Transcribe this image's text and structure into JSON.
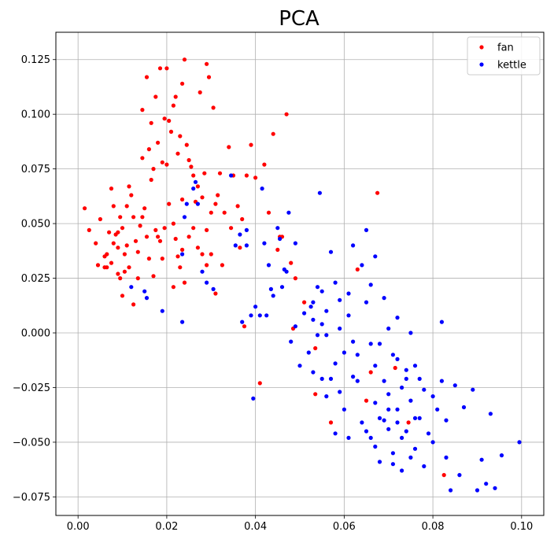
{
  "chart_data": {
    "type": "scatter",
    "title": "PCA",
    "xlabel": "",
    "ylabel": "",
    "xlim": [
      -0.005,
      0.105
    ],
    "ylim": [
      -0.0835,
      0.1375
    ],
    "xticks": [
      0.0,
      0.02,
      0.04,
      0.06,
      0.08,
      0.1
    ],
    "xtick_labels": [
      "0.00",
      "0.02",
      "0.04",
      "0.06",
      "0.08",
      "0.10"
    ],
    "yticks": [
      -0.075,
      -0.05,
      -0.025,
      0.0,
      0.025,
      0.05,
      0.075,
      0.1,
      0.125
    ],
    "ytick_labels": [
      "−0.075",
      "−0.050",
      "−0.025",
      "0.000",
      "0.025",
      "0.050",
      "0.075",
      "0.100",
      "0.125"
    ],
    "grid": true,
    "legend_position": "top-right",
    "series": [
      {
        "name": "fan",
        "color": "#ff0000",
        "points": [
          [
            0.0015,
            0.057
          ],
          [
            0.0025,
            0.047
          ],
          [
            0.004,
            0.041
          ],
          [
            0.005,
            0.052
          ],
          [
            0.0045,
            0.031
          ],
          [
            0.006,
            0.035
          ],
          [
            0.0065,
            0.03
          ],
          [
            0.0075,
            0.032
          ],
          [
            0.007,
            0.046
          ],
          [
            0.008,
            0.041
          ],
          [
            0.0085,
            0.045
          ],
          [
            0.009,
            0.039
          ],
          [
            0.0095,
            0.053
          ],
          [
            0.01,
            0.048
          ],
          [
            0.0105,
            0.036
          ],
          [
            0.011,
            0.058
          ],
          [
            0.0115,
            0.067
          ],
          [
            0.012,
            0.063
          ],
          [
            0.0125,
            0.053
          ],
          [
            0.013,
            0.042
          ],
          [
            0.0135,
            0.037
          ],
          [
            0.0075,
            0.066
          ],
          [
            0.008,
            0.058
          ],
          [
            0.009,
            0.027
          ],
          [
            0.01,
            0.017
          ],
          [
            0.0115,
            0.03
          ],
          [
            0.0125,
            0.013
          ],
          [
            0.0135,
            0.025
          ],
          [
            0.014,
            0.049
          ],
          [
            0.0145,
            0.053
          ],
          [
            0.015,
            0.057
          ],
          [
            0.0155,
            0.044
          ],
          [
            0.016,
            0.034
          ],
          [
            0.0145,
            0.102
          ],
          [
            0.0155,
            0.117
          ],
          [
            0.016,
            0.084
          ],
          [
            0.0165,
            0.096
          ],
          [
            0.017,
            0.075
          ],
          [
            0.0175,
            0.108
          ],
          [
            0.018,
            0.087
          ],
          [
            0.0185,
            0.121
          ],
          [
            0.019,
            0.078
          ],
          [
            0.0195,
            0.098
          ],
          [
            0.02,
            0.121
          ],
          [
            0.0205,
            0.097
          ],
          [
            0.021,
            0.092
          ],
          [
            0.0215,
            0.104
          ],
          [
            0.022,
            0.108
          ],
          [
            0.0225,
            0.082
          ],
          [
            0.023,
            0.09
          ],
          [
            0.0235,
            0.114
          ],
          [
            0.024,
            0.125
          ],
          [
            0.0245,
            0.086
          ],
          [
            0.025,
            0.079
          ],
          [
            0.0255,
            0.076
          ],
          [
            0.026,
            0.072
          ],
          [
            0.0265,
            0.06
          ],
          [
            0.027,
            0.067
          ],
          [
            0.0275,
            0.11
          ],
          [
            0.028,
            0.062
          ],
          [
            0.0285,
            0.073
          ],
          [
            0.029,
            0.123
          ],
          [
            0.0295,
            0.117
          ],
          [
            0.03,
            0.055
          ],
          [
            0.0305,
            0.103
          ],
          [
            0.031,
            0.059
          ],
          [
            0.0315,
            0.063
          ],
          [
            0.032,
            0.073
          ],
          [
            0.033,
            0.055
          ],
          [
            0.034,
            0.085
          ],
          [
            0.035,
            0.072
          ],
          [
            0.036,
            0.058
          ],
          [
            0.037,
            0.052
          ],
          [
            0.038,
            0.072
          ],
          [
            0.039,
            0.086
          ],
          [
            0.04,
            0.071
          ],
          [
            0.042,
            0.077
          ],
          [
            0.043,
            0.055
          ],
          [
            0.044,
            0.091
          ],
          [
            0.047,
            0.1
          ],
          [
            0.0205,
            0.059
          ],
          [
            0.0215,
            0.05
          ],
          [
            0.022,
            0.043
          ],
          [
            0.0225,
            0.035
          ],
          [
            0.023,
            0.03
          ],
          [
            0.0235,
            0.038
          ],
          [
            0.024,
            0.023
          ],
          [
            0.025,
            0.044
          ],
          [
            0.026,
            0.048
          ],
          [
            0.027,
            0.039
          ],
          [
            0.028,
            0.036
          ],
          [
            0.029,
            0.031
          ],
          [
            0.03,
            0.036
          ],
          [
            0.031,
            0.018
          ],
          [
            0.0325,
            0.031
          ],
          [
            0.017,
            0.026
          ],
          [
            0.018,
            0.044
          ],
          [
            0.0185,
            0.042
          ],
          [
            0.019,
            0.034
          ],
          [
            0.0195,
            0.048
          ],
          [
            0.02,
            0.077
          ],
          [
            0.0215,
            0.021
          ],
          [
            0.0345,
            0.048
          ],
          [
            0.0365,
            0.039
          ],
          [
            0.0375,
            0.003
          ],
          [
            0.041,
            -0.023
          ],
          [
            0.045,
            0.038
          ],
          [
            0.0455,
            0.044
          ],
          [
            0.046,
            0.044
          ],
          [
            0.048,
            0.032
          ],
          [
            0.049,
            0.025
          ],
          [
            0.0485,
            0.002
          ],
          [
            0.051,
            0.014
          ],
          [
            0.0535,
            -0.007
          ],
          [
            0.0535,
            -0.028
          ],
          [
            0.057,
            -0.041
          ],
          [
            0.063,
            0.029
          ],
          [
            0.065,
            -0.031
          ],
          [
            0.066,
            -0.018
          ],
          [
            0.0675,
            0.064
          ],
          [
            0.0715,
            -0.016
          ],
          [
            0.0745,
            -0.041
          ],
          [
            0.0825,
            -0.065
          ],
          [
            0.006,
            0.03
          ],
          [
            0.0065,
            0.036
          ],
          [
            0.009,
            0.046
          ],
          [
            0.0095,
            0.025
          ],
          [
            0.0165,
            0.07
          ],
          [
            0.0175,
            0.047
          ],
          [
            0.011,
            0.04
          ],
          [
            0.0105,
            0.028
          ],
          [
            0.0145,
            0.08
          ],
          [
            0.0235,
            0.061
          ],
          [
            0.029,
            0.047
          ]
        ]
      },
      {
        "name": "kettle",
        "color": "#0000ff",
        "points": [
          [
            0.012,
            0.021
          ],
          [
            0.015,
            0.019
          ],
          [
            0.0155,
            0.016
          ],
          [
            0.019,
            0.01
          ],
          [
            0.0235,
            0.005
          ],
          [
            0.0235,
            0.036
          ],
          [
            0.024,
            0.053
          ],
          [
            0.0245,
            0.059
          ],
          [
            0.026,
            0.066
          ],
          [
            0.0265,
            0.069
          ],
          [
            0.027,
            0.059
          ],
          [
            0.028,
            0.028
          ],
          [
            0.029,
            0.023
          ],
          [
            0.0305,
            0.02
          ],
          [
            0.0345,
            0.072
          ],
          [
            0.0355,
            0.04
          ],
          [
            0.0365,
            0.045
          ],
          [
            0.037,
            0.005
          ],
          [
            0.038,
            0.047
          ],
          [
            0.038,
            0.04
          ],
          [
            0.039,
            0.008
          ],
          [
            0.0395,
            -0.03
          ],
          [
            0.04,
            0.012
          ],
          [
            0.041,
            0.008
          ],
          [
            0.0415,
            0.066
          ],
          [
            0.042,
            0.041
          ],
          [
            0.0425,
            0.008
          ],
          [
            0.043,
            0.031
          ],
          [
            0.0435,
            0.02
          ],
          [
            0.044,
            0.017
          ],
          [
            0.045,
            0.048
          ],
          [
            0.0455,
            0.043
          ],
          [
            0.046,
            0.021
          ],
          [
            0.0465,
            0.029
          ],
          [
            0.047,
            0.028
          ],
          [
            0.0475,
            0.055
          ],
          [
            0.048,
            -0.004
          ],
          [
            0.049,
            0.003
          ],
          [
            0.049,
            0.041
          ],
          [
            0.05,
            -0.015
          ],
          [
            0.051,
            0.009
          ],
          [
            0.052,
            -0.009
          ],
          [
            0.0525,
            0.012
          ],
          [
            0.053,
            0.014
          ],
          [
            0.053,
            0.006
          ],
          [
            0.054,
            0.021
          ],
          [
            0.054,
            -0.001
          ],
          [
            0.0545,
            0.064
          ],
          [
            0.055,
            0.019
          ],
          [
            0.055,
            -0.021
          ],
          [
            0.056,
            0.01
          ],
          [
            0.056,
            -0.029
          ],
          [
            0.057,
            -0.021
          ],
          [
            0.057,
            0.037
          ],
          [
            0.058,
            0.023
          ],
          [
            0.058,
            -0.046
          ],
          [
            0.059,
            0.002
          ],
          [
            0.059,
            0.015
          ],
          [
            0.06,
            -0.009
          ],
          [
            0.06,
            -0.035
          ],
          [
            0.061,
            -0.048
          ],
          [
            0.061,
            0.008
          ],
          [
            0.062,
            0.04
          ],
          [
            0.062,
            -0.004
          ],
          [
            0.063,
            -0.022
          ],
          [
            0.064,
            0.031
          ],
          [
            0.064,
            -0.041
          ],
          [
            0.065,
            0.014
          ],
          [
            0.065,
            0.047
          ],
          [
            0.066,
            -0.048
          ],
          [
            0.066,
            -0.005
          ],
          [
            0.067,
            -0.015
          ],
          [
            0.067,
            -0.032
          ],
          [
            0.068,
            -0.039
          ],
          [
            0.068,
            -0.059
          ],
          [
            0.069,
            0.016
          ],
          [
            0.069,
            -0.022
          ],
          [
            0.07,
            -0.028
          ],
          [
            0.07,
            -0.044
          ],
          [
            0.071,
            -0.01
          ],
          [
            0.071,
            -0.055
          ],
          [
            0.072,
            -0.035
          ],
          [
            0.072,
            0.007
          ],
          [
            0.073,
            -0.025
          ],
          [
            0.073,
            -0.063
          ],
          [
            0.074,
            -0.017
          ],
          [
            0.074,
            -0.045
          ],
          [
            0.075,
            -0.031
          ],
          [
            0.075,
            0.0
          ],
          [
            0.076,
            -0.039
          ],
          [
            0.076,
            -0.053
          ],
          [
            0.077,
            -0.021
          ],
          [
            0.078,
            -0.026
          ],
          [
            0.078,
            -0.061
          ],
          [
            0.079,
            -0.046
          ],
          [
            0.08,
            -0.029
          ],
          [
            0.081,
            -0.035
          ],
          [
            0.082,
            -0.022
          ],
          [
            0.082,
            0.005
          ],
          [
            0.083,
            -0.057
          ],
          [
            0.084,
            -0.072
          ],
          [
            0.085,
            -0.024
          ],
          [
            0.086,
            -0.065
          ],
          [
            0.087,
            -0.034
          ],
          [
            0.089,
            -0.026
          ],
          [
            0.09,
            -0.072
          ],
          [
            0.091,
            -0.058
          ],
          [
            0.092,
            -0.069
          ],
          [
            0.093,
            -0.037
          ],
          [
            0.094,
            -0.071
          ],
          [
            0.0955,
            -0.056
          ],
          [
            0.0995,
            -0.05
          ],
          [
            0.062,
            -0.02
          ],
          [
            0.068,
            -0.005
          ],
          [
            0.07,
            0.002
          ],
          [
            0.072,
            -0.012
          ],
          [
            0.074,
            -0.021
          ],
          [
            0.076,
            -0.015
          ],
          [
            0.065,
            -0.045
          ],
          [
            0.067,
            -0.052
          ],
          [
            0.069,
            -0.04
          ],
          [
            0.073,
            -0.048
          ],
          [
            0.075,
            -0.057
          ],
          [
            0.071,
            -0.06
          ],
          [
            0.063,
            -0.01
          ],
          [
            0.061,
            0.018
          ],
          [
            0.058,
            -0.014
          ],
          [
            0.056,
            -0.001
          ],
          [
            0.053,
            -0.018
          ],
          [
            0.055,
            0.004
          ],
          [
            0.059,
            -0.027
          ],
          [
            0.066,
            0.022
          ],
          [
            0.067,
            0.035
          ],
          [
            0.07,
            -0.035
          ],
          [
            0.072,
            -0.041
          ],
          [
            0.077,
            -0.039
          ],
          [
            0.08,
            -0.05
          ],
          [
            0.083,
            -0.04
          ]
        ]
      }
    ]
  }
}
